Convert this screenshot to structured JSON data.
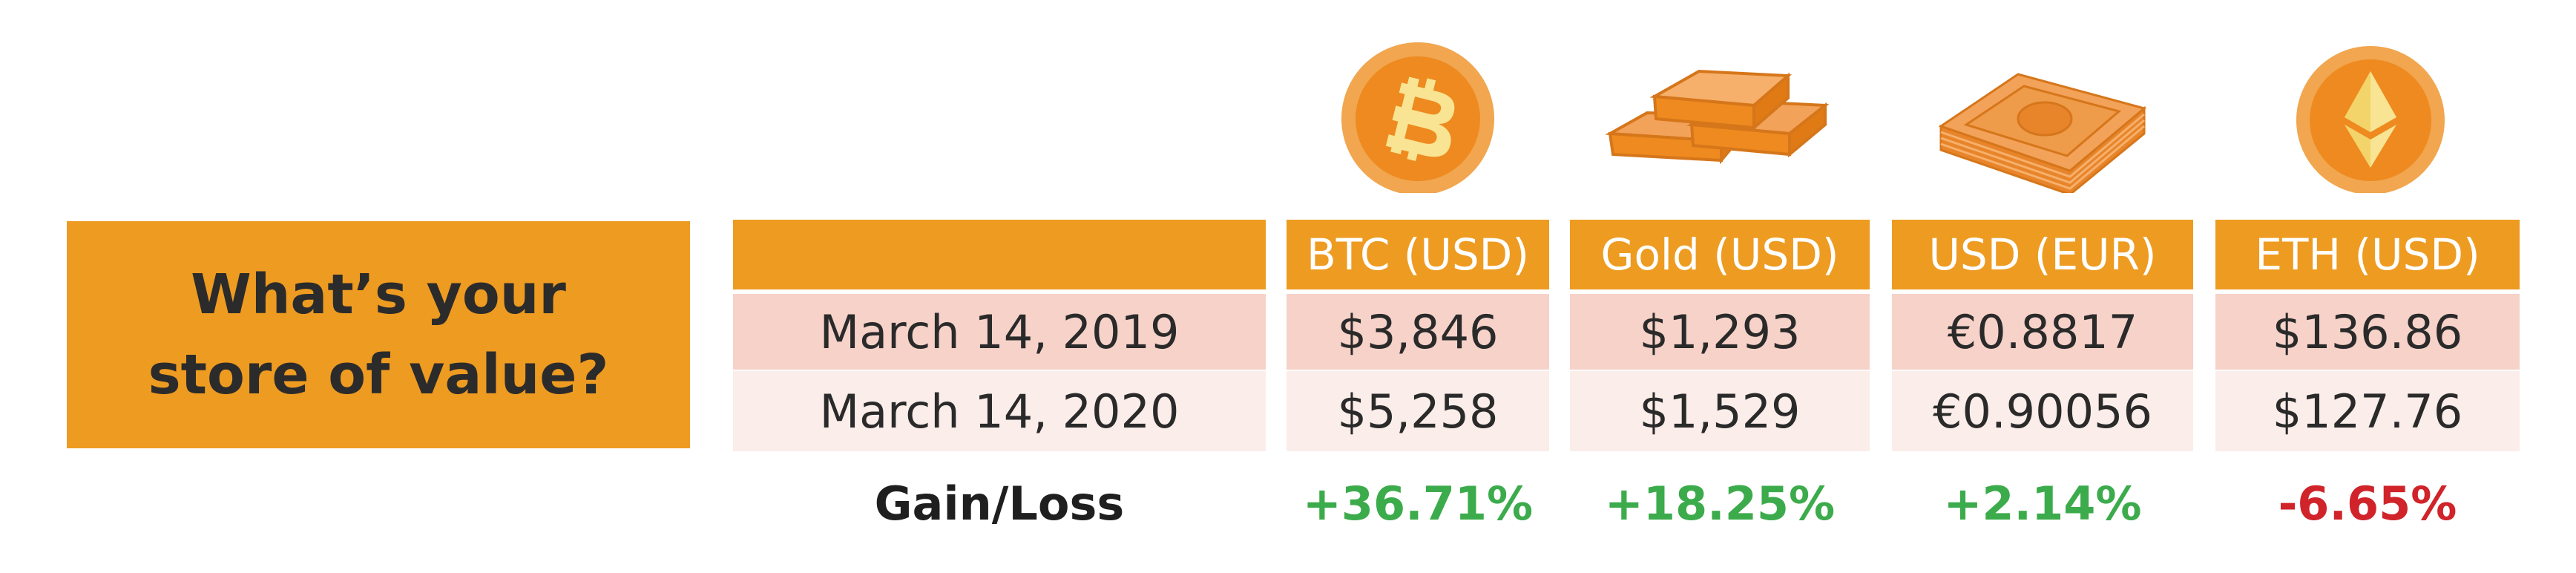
{
  "title": {
    "line1": "What’s your",
    "line2": "store of value?"
  },
  "columns": [
    {
      "header": "BTC (USD)",
      "icon": "bitcoin-icon"
    },
    {
      "header": "Gold (USD)",
      "icon": "gold-bars-icon"
    },
    {
      "header": "USD (EUR)",
      "icon": "money-stack-icon"
    },
    {
      "header": "ETH (USD)",
      "icon": "ethereum-icon"
    }
  ],
  "rows": [
    {
      "date": "March 14, 2019",
      "values": [
        "$3,846",
        "$1,293",
        "€0.8817",
        "$136.86"
      ]
    },
    {
      "date": "March 14, 2020",
      "values": [
        "$5,258",
        "$1,529",
        "€0.90056",
        "$127.76"
      ]
    }
  ],
  "gain_loss": {
    "label": "Gain/Loss",
    "values": [
      "+36.71%",
      "+18.25%",
      "+2.14%",
      "-6.65%"
    ]
  },
  "colors": {
    "accent": "#EE9B21",
    "row1": "#F6D2C9",
    "row2": "#FBEDE9",
    "positive": "#3CAB4B",
    "negative": "#D0232A"
  }
}
